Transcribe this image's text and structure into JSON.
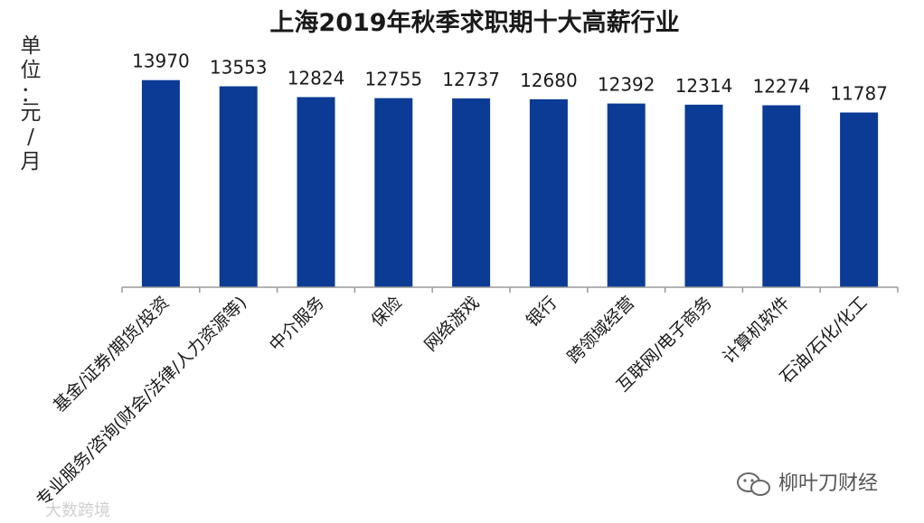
{
  "chart_data": {
    "type": "bar",
    "title": "上海2019年秋季求职期十大高薪行业",
    "unit_label": "单位：元/月",
    "categories": [
      "基金/证券/期货/投资",
      "专业服务/咨询(财会/法律/人力资源等)",
      "中介服务",
      "保险",
      "网络游戏",
      "银行",
      "跨领域经营",
      "互联网/电子商务",
      "计算机软件",
      "石油/石化/化工"
    ],
    "values": [
      13970,
      13553,
      12824,
      12755,
      12737,
      12680,
      12392,
      12314,
      12274,
      11787
    ],
    "ylim": [
      0,
      14500
    ],
    "grid": false,
    "legend": "none",
    "bar_color": "#0b3b94",
    "axis_color": "#9a9a9a"
  },
  "watermark": {
    "right_text": "柳叶刀财经",
    "left_text": "大数跨境",
    "icon": "wechat-icon"
  }
}
